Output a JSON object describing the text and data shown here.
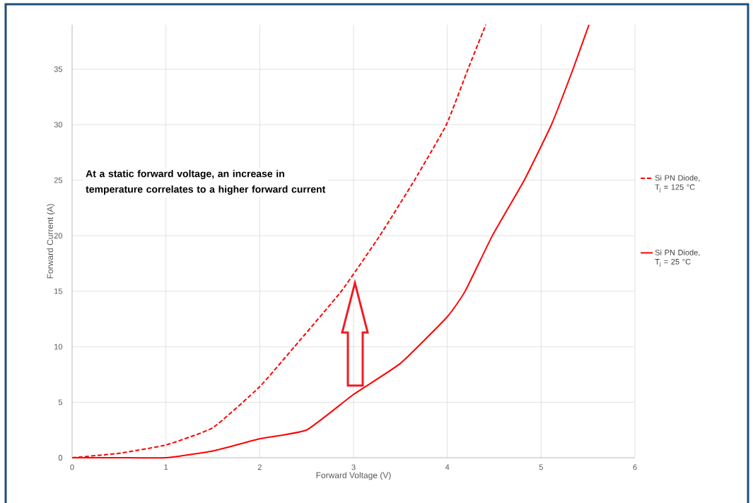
{
  "chart_data": {
    "type": "line",
    "xlabel": "Forward Voltage (V)",
    "ylabel": "Forward Current (A)",
    "series": [
      {
        "name": "Si PN Diode, T$_{j}$ = 125 °C",
        "color": "#ff0000",
        "line_style": "dashed",
        "x": [
          0,
          0.5,
          1,
          1.5,
          2,
          2.37,
          2.87,
          3.28,
          3.65,
          3.99,
          4.22,
          4.41
        ],
        "values": [
          0,
          0.4,
          1.15,
          2.7,
          6.4,
          10,
          15,
          20,
          25,
          30,
          35,
          39
        ]
      },
      {
        "name": "Si PN Diode, T$_{j}$ = 25 °C",
        "color": "#ff0000",
        "line_style": "solid",
        "x": [
          0,
          0.5,
          1,
          1.5,
          2,
          2.5,
          3,
          3.5,
          4,
          4.19,
          4.48,
          4.82,
          5.11,
          5.34,
          5.51
        ],
        "values": [
          0,
          0,
          0,
          0.6,
          1.7,
          2.5,
          5.7,
          8.5,
          12.7,
          15,
          20,
          25,
          30,
          35,
          39
        ]
      }
    ],
    "xlim": [
      0,
      6
    ],
    "ylim": [
      0,
      39
    ],
    "xticks": [
      0,
      1,
      2,
      3,
      4,
      5,
      6
    ],
    "yticks": [
      0,
      5,
      10,
      15,
      20,
      25,
      30,
      35
    ],
    "grid": true,
    "legend": "right",
    "marker": "none",
    "annotations": [
      "At a static forward voltage, an increase in temperature correlates to a higher forward current"
    ]
  }
}
